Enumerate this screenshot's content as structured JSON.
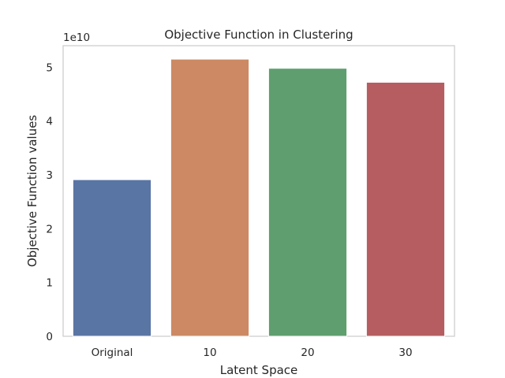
{
  "chart_data": {
    "type": "bar",
    "title": "Objective Function in Clustering",
    "xlabel": "Latent Space",
    "ylabel": "Objective Function values",
    "y_offset_label": "1e10",
    "y_scale": 10000000000,
    "categories": [
      "Original",
      "10",
      "20",
      "30"
    ],
    "values": [
      29100000000,
      51500000000,
      49800000000,
      47200000000
    ],
    "colors": [
      "#5975a4",
      "#cc8963",
      "#5f9e6e",
      "#b55d60"
    ],
    "yticks": [
      0,
      1,
      2,
      3,
      4,
      5
    ],
    "ylim": [
      0,
      54000000000
    ],
    "grid": false,
    "legend": null
  }
}
